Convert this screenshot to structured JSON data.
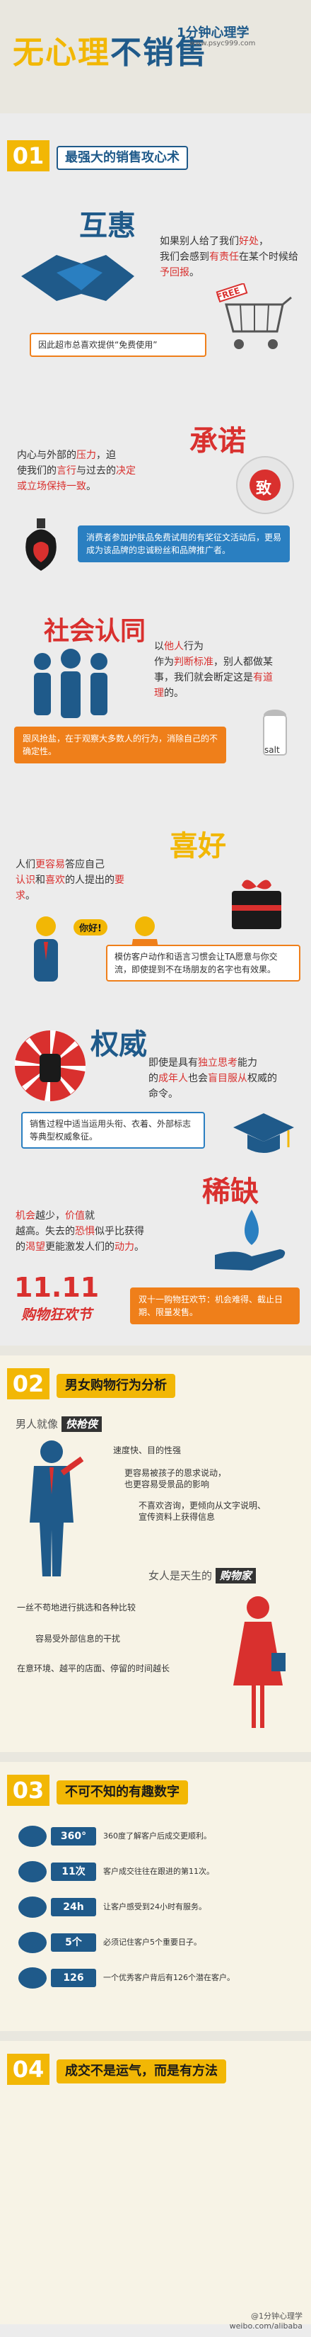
{
  "header": {
    "title_a": "无心理",
    "title_b": "不销售",
    "brand": "1分钟心理学",
    "url": "www.psyc999.com"
  },
  "sec1": {
    "num": "01",
    "title": "最强大的销售攻心术",
    "reciprocity": {
      "heading": "互惠",
      "line1": "如果别人给了我们",
      "line1_hl": "好处",
      "line1_end": "，",
      "line2": "我们会感到",
      "line2_hl": "有责任",
      "line2_end": "在某个时候给",
      "line3_hl": "予回报",
      "line3_end": "。",
      "note": "因此超市总喜欢提供“免费使用”",
      "free_tag": "FREE"
    },
    "commitment": {
      "heading": "承诺",
      "line1_a": "内心与外部的",
      "line1_hl": "压力",
      "line1_end": "，迫",
      "line2_a": "使我们的",
      "line2_hl1": "言行",
      "line2_b": "与过去的",
      "line2_hl2": "决定",
      "line3_hl": "或立场保持一致",
      "line3_end": "。",
      "note": "消费者参加护肤品免费试用的有奖征文活动后，更易成为该品牌的忠诚粉丝和品牌推广者。",
      "stamp": "致"
    },
    "social": {
      "heading": "社会认同",
      "line1_a": "以",
      "line1_hl": "他人",
      "line1_b": "行为",
      "line2_a": "作为",
      "line2_hl": "判断标准",
      "line2_b": "，别人都做某",
      "line3": "事，我们就会断定这是",
      "line3_hl": "有道",
      "line4_hl": "理",
      "line4_end": "的。",
      "note": "跟风抢盐，在于观察大多数人的行为，消除自己的不确定性。",
      "salt": "salt"
    },
    "liking": {
      "heading": "喜好",
      "line1_a": "人们",
      "line1_hl": "更容易",
      "line1_b": "答应自己",
      "line2_hl1": "认识",
      "line2_a": "和",
      "line2_hl2": "喜欢",
      "line2_b": "的人提出的",
      "line2_hl3": "要",
      "line3_hl": "求",
      "line3_end": "。",
      "bubble": "你好!",
      "note": "模仿客户动作和语言习惯会让TA愿意与你交流，即使提到不在场朋友的名字也有效果。"
    },
    "authority": {
      "heading": "权威",
      "line1_a": "即使是具有",
      "line1_hl": "独立思考",
      "line1_b": "能力",
      "line2_a": "的",
      "line2_hl1": "成年人",
      "line2_b": "也会",
      "line2_hl2": "盲目服从",
      "line2_c": "权威的",
      "line3": "命令。",
      "note": "销售过程中适当运用头衔、衣着、外部标志等典型权威象征。"
    },
    "scarcity": {
      "heading": "稀缺",
      "line1_a": "机会",
      "line1_b": "越少，",
      "line1_c": "价值",
      "line1_d": "就",
      "line2": "越高。失去的",
      "line2_hl": "恐惧",
      "line2_b": "似乎比获得",
      "line3_a": "的",
      "line3_hl": "渴望",
      "line3_b": "更能激发人们的",
      "line3_hl2": "动力",
      "line3_end": "。",
      "sale_mark": "11.11",
      "sale_text": "购物狂欢节",
      "note": "双十一购物狂欢节：机会难得、截止日期、限量发售。"
    }
  },
  "sec2": {
    "num": "02",
    "title": "男女购物行为分析",
    "men_label": "男人就像",
    "men_tag": "快枪侠",
    "men_points": [
      [
        "速度快、目的性强",
        ""
      ],
      [
        "更容易被孩子的恩求说动，",
        "也更容易受景品的影响"
      ],
      [
        "不喜欢咨询，更倾向从文字说明、",
        "宣传资料上获得信息"
      ]
    ],
    "women_label": "女人是天生的",
    "women_tag": "购物家",
    "women_points": [
      [
        "一丝不苟地进行挑选和各种比较",
        ""
      ],
      [
        "容易受外部信息的干扰",
        ""
      ],
      [
        "在意环境、越平的店面、停留的时间越长",
        ""
      ]
    ]
  },
  "sec3": {
    "num": "03",
    "title": "不可不知的有趣数字",
    "rows": [
      {
        "big": "360°",
        "text": "360度了解客户后成交更顺利。"
      },
      {
        "big": "11次",
        "text": "客户成交往往在跟进的第11次。"
      },
      {
        "big": "24h",
        "text": "让客户感受到24小时有服务。"
      },
      {
        "big": "5个",
        "text": "必须记住客户5个重要日子。"
      },
      {
        "big": "126",
        "text": "一个优秀客户背后有126个潜在客户。"
      }
    ]
  },
  "sec4": {
    "num": "04",
    "title": "成交不是运气，而是有方法"
  },
  "footer": {
    "line1": "@1分钟心理学",
    "line2": "weibo.com/alibaba"
  },
  "colors": {
    "gold": "#f2b705",
    "navy": "#1f5a8a",
    "red": "#d9302e",
    "orange": "#ef7f1a",
    "blue": "#2a7fc1"
  }
}
